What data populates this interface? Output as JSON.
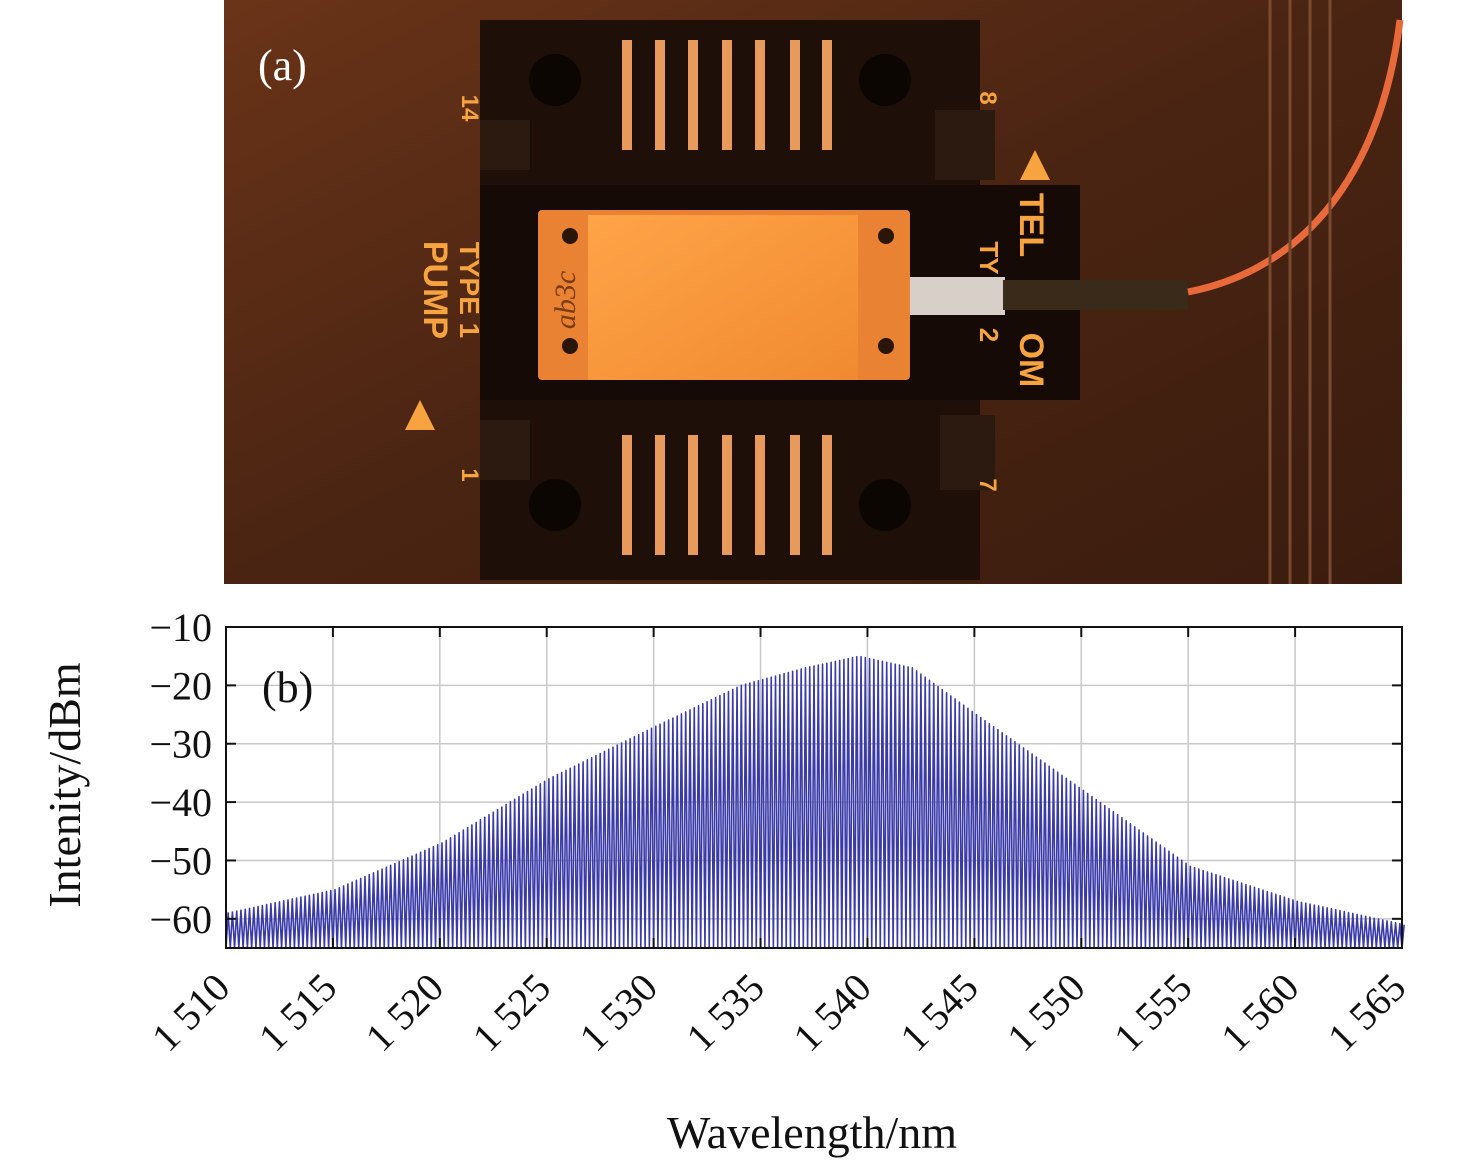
{
  "photo": {
    "label": "(a)",
    "texts": {
      "pump": "PUMP",
      "type1": "TYPE 1",
      "telecom_a": "TEL",
      "telecom_b": "OM",
      "type2_a": "TY",
      "type2_b": "2",
      "pin14": "14",
      "pin1": "1",
      "pin8": "8",
      "pin7": "7",
      "chip_mark": "ab3c"
    }
  },
  "chart_data": {
    "type": "line",
    "panel_label": "(b)",
    "xlabel": "Wavelength/nm",
    "ylabel": "Intenity/dBm",
    "xlim": [
      1510,
      1565
    ],
    "ylim": [
      -65,
      -10
    ],
    "x_ticks": [
      1510,
      1515,
      1520,
      1525,
      1530,
      1535,
      1540,
      1545,
      1550,
      1555,
      1560,
      1565
    ],
    "x_tick_labels": [
      "1 510",
      "1 515",
      "1 520",
      "1 525",
      "1 530",
      "1 535",
      "1 540",
      "1 545",
      "1 550",
      "1 555",
      "1 560",
      "1 565"
    ],
    "y_ticks": [
      -10,
      -20,
      -30,
      -40,
      -50,
      -60
    ],
    "y_tick_labels": [
      "−10",
      "−20",
      "−30",
      "−40",
      "−50",
      "−60"
    ],
    "grid": true,
    "series": [
      {
        "color": "#3a3aa8",
        "comb_spacing_nm": 0.2,
        "noise_floor_dBm": -65,
        "envelope": {
          "x": [
            1510,
            1515,
            1520,
            1525,
            1530,
            1534,
            1537,
            1539.5,
            1542,
            1545,
            1550,
            1555,
            1560,
            1565
          ],
          "y": [
            -59,
            -55,
            -47,
            -36,
            -27,
            -20,
            -17,
            -15,
            -17,
            -25,
            -38,
            -51,
            -57,
            -61
          ]
        }
      }
    ]
  }
}
